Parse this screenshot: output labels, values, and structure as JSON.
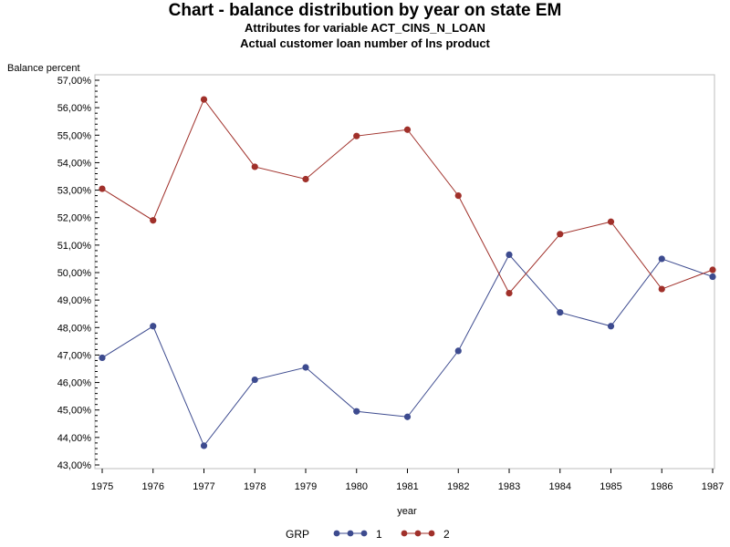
{
  "chart_data": {
    "type": "line",
    "title": "Chart - balance distribution by year on state EM",
    "subtitles": [
      "Attributes for variable ACT_CINS_N_LOAN",
      "Actual customer loan number of lns product"
    ],
    "xlabel": "year",
    "ylabel": "Balance percent",
    "x": [
      1975,
      1976,
      1977,
      1978,
      1979,
      1980,
      1981,
      1982,
      1983,
      1984,
      1985,
      1986,
      1987
    ],
    "x_tick_labels": [
      "1975",
      "1976",
      "1977",
      "1978",
      "1979",
      "1980",
      "1981",
      "1982",
      "1983",
      "1984",
      "1985",
      "1986",
      "1987"
    ],
    "ylim": [
      43,
      57
    ],
    "y_ticks": [
      43,
      44,
      45,
      46,
      47,
      48,
      49,
      50,
      51,
      52,
      53,
      54,
      55,
      56,
      57
    ],
    "y_tick_labels": [
      "43,00%",
      "44,00%",
      "45,00%",
      "46,00%",
      "47,00%",
      "48,00%",
      "49,00%",
      "50,00%",
      "51,00%",
      "52,00%",
      "53,00%",
      "54,00%",
      "55,00%",
      "56,00%",
      "57,00%"
    ],
    "legend_title": "GRP",
    "legend_position": "bottom",
    "grid": false,
    "series": [
      {
        "name": "1",
        "color": "#3d4b8f",
        "values": [
          46.9,
          48.05,
          43.7,
          46.1,
          46.55,
          44.95,
          44.75,
          47.15,
          50.65,
          48.55,
          48.05,
          50.5,
          49.85
        ]
      },
      {
        "name": "2",
        "color": "#a0302a",
        "values": [
          53.05,
          51.9,
          56.3,
          53.85,
          53.4,
          54.97,
          55.2,
          52.8,
          49.25,
          51.4,
          51.85,
          49.4,
          50.1
        ]
      }
    ]
  }
}
